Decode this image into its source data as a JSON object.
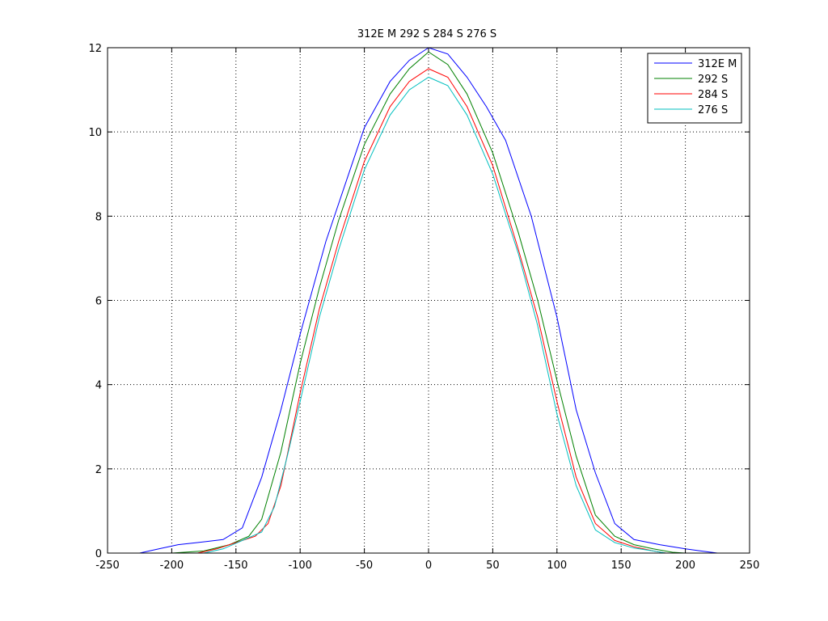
{
  "chart_data": {
    "type": "line",
    "title": "312E M  292 S  284 S  276 S",
    "xlabel": "",
    "ylabel": "",
    "xlim": [
      -250,
      250
    ],
    "ylim": [
      0,
      12
    ],
    "xticks": [
      -250,
      -200,
      -150,
      -100,
      -50,
      0,
      50,
      100,
      150,
      200,
      250
    ],
    "yticks": [
      0,
      2,
      4,
      6,
      8,
      10,
      12
    ],
    "xtick_labels": [
      "-250",
      "-200",
      "-150",
      "-100",
      "-50",
      "0",
      "50",
      "100",
      "150",
      "200",
      "250"
    ],
    "ytick_labels": [
      "0",
      "2",
      "4",
      "6",
      "8",
      "10",
      "12"
    ],
    "grid": true,
    "legend_position": "top-right",
    "series": [
      {
        "name": "312E M",
        "color": "#0000ff",
        "points": [
          [
            -225,
            0
          ],
          [
            -210,
            0.1
          ],
          [
            -195,
            0.2
          ],
          [
            -180,
            0.25
          ],
          [
            -160,
            0.32
          ],
          [
            -145,
            0.6
          ],
          [
            -130,
            1.8
          ],
          [
            -115,
            3.4
          ],
          [
            -100,
            5.2
          ],
          [
            -90,
            6.3
          ],
          [
            -80,
            7.4
          ],
          [
            -60,
            9.2
          ],
          [
            -50,
            10.1
          ],
          [
            -30,
            11.2
          ],
          [
            -15,
            11.7
          ],
          [
            0,
            12
          ],
          [
            15,
            11.85
          ],
          [
            30,
            11.3
          ],
          [
            45,
            10.6
          ],
          [
            60,
            9.8
          ],
          [
            80,
            8.0
          ],
          [
            100,
            5.6
          ],
          [
            115,
            3.4
          ],
          [
            130,
            1.9
          ],
          [
            145,
            0.7
          ],
          [
            160,
            0.32
          ],
          [
            180,
            0.2
          ],
          [
            200,
            0.1
          ],
          [
            212,
            0.05
          ],
          [
            225,
            0
          ]
        ]
      },
      {
        "name": "292 S",
        "color": "#008000",
        "points": [
          [
            -200,
            0
          ],
          [
            -175,
            0.05
          ],
          [
            -155,
            0.2
          ],
          [
            -140,
            0.4
          ],
          [
            -130,
            0.8
          ],
          [
            -115,
            2.4
          ],
          [
            -100,
            4.5
          ],
          [
            -85,
            6.3
          ],
          [
            -70,
            7.9
          ],
          [
            -50,
            9.7
          ],
          [
            -30,
            10.9
          ],
          [
            -15,
            11.5
          ],
          [
            0,
            11.9
          ],
          [
            15,
            11.6
          ],
          [
            30,
            10.9
          ],
          [
            50,
            9.5
          ],
          [
            70,
            7.6
          ],
          [
            85,
            6.0
          ],
          [
            100,
            4.1
          ],
          [
            115,
            2.3
          ],
          [
            130,
            0.9
          ],
          [
            145,
            0.4
          ],
          [
            160,
            0.2
          ],
          [
            175,
            0.1
          ],
          [
            190,
            0.02
          ],
          [
            200,
            0
          ]
        ]
      },
      {
        "name": "284 S",
        "color": "#ff0000",
        "points": [
          [
            -180,
            0
          ],
          [
            -165,
            0.1
          ],
          [
            -150,
            0.25
          ],
          [
            -135,
            0.4
          ],
          [
            -125,
            0.7
          ],
          [
            -115,
            1.6
          ],
          [
            -100,
            3.8
          ],
          [
            -85,
            5.8
          ],
          [
            -70,
            7.4
          ],
          [
            -50,
            9.3
          ],
          [
            -30,
            10.6
          ],
          [
            -15,
            11.2
          ],
          [
            0,
            11.5
          ],
          [
            15,
            11.3
          ],
          [
            30,
            10.6
          ],
          [
            50,
            9.2
          ],
          [
            70,
            7.2
          ],
          [
            85,
            5.6
          ],
          [
            100,
            3.6
          ],
          [
            115,
            1.8
          ],
          [
            130,
            0.7
          ],
          [
            145,
            0.3
          ],
          [
            160,
            0.15
          ],
          [
            175,
            0.05
          ],
          [
            185,
            0
          ]
        ]
      },
      {
        "name": "276 S",
        "color": "#00bfbf",
        "points": [
          [
            -175,
            0
          ],
          [
            -160,
            0.1
          ],
          [
            -145,
            0.3
          ],
          [
            -130,
            0.5
          ],
          [
            -120,
            1.1
          ],
          [
            -110,
            2.3
          ],
          [
            -100,
            3.6
          ],
          [
            -85,
            5.6
          ],
          [
            -70,
            7.2
          ],
          [
            -50,
            9.1
          ],
          [
            -30,
            10.4
          ],
          [
            -15,
            11.0
          ],
          [
            0,
            11.3
          ],
          [
            15,
            11.1
          ],
          [
            30,
            10.4
          ],
          [
            50,
            9.0
          ],
          [
            70,
            7.1
          ],
          [
            85,
            5.4
          ],
          [
            100,
            3.3
          ],
          [
            115,
            1.6
          ],
          [
            130,
            0.55
          ],
          [
            145,
            0.25
          ],
          [
            160,
            0.12
          ],
          [
            175,
            0.05
          ],
          [
            185,
            0
          ]
        ]
      }
    ]
  }
}
